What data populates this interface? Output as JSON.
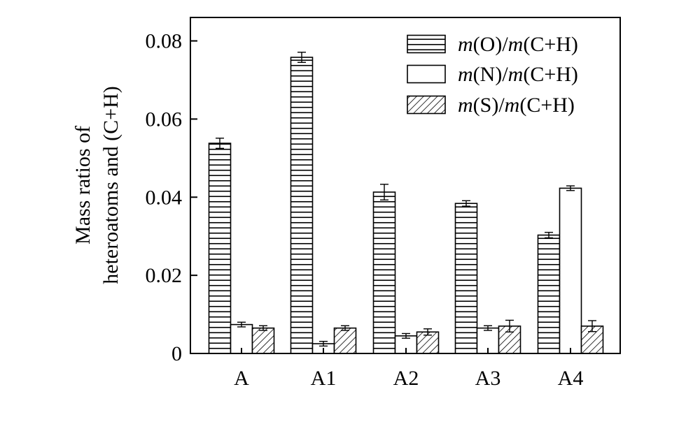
{
  "chart_data": {
    "type": "bar",
    "categories": [
      "A",
      "A1",
      "A2",
      "A3",
      "A4"
    ],
    "series": [
      {
        "name": "m(O)/m(C+H)",
        "name_parts": {
          "italic": "m",
          "mid": "(O)/",
          "italic2": "m",
          "tail": "(C+H)"
        },
        "fill": "hatch-horizontal",
        "values": [
          0.0538,
          0.0758,
          0.0413,
          0.0384,
          0.0303
        ],
        "errors": [
          0.0013,
          0.0013,
          0.002,
          0.0007,
          0.0007
        ]
      },
      {
        "name": "m(N)/m(C+H)",
        "name_parts": {
          "italic": "m",
          "mid": "(N)/",
          "italic2": "m",
          "tail": "(C+H)"
        },
        "fill": "white",
        "values": [
          0.0074,
          0.0025,
          0.0045,
          0.0065,
          0.0423
        ],
        "errors": [
          0.0006,
          0.0006,
          0.0006,
          0.0006,
          0.0006
        ]
      },
      {
        "name": "m(S)/m(C+H)",
        "name_parts": {
          "italic": "m",
          "mid": "(S)/",
          "italic2": "m",
          "tail": "(C+H)"
        },
        "fill": "hatch-diagonal",
        "values": [
          0.0065,
          0.0065,
          0.0055,
          0.007,
          0.007
        ],
        "errors": [
          0.0006,
          0.0006,
          0.0008,
          0.0015,
          0.0014
        ]
      }
    ],
    "ylabel_line1": "Mass ratios of",
    "ylabel_line2": "heteroatoms and (C+H)",
    "xlabel": "",
    "ylim": [
      0,
      0.086
    ],
    "yticks": [
      0,
      0.02,
      0.04,
      0.06,
      0.08
    ],
    "ytick_labels": [
      "0",
      "0.02",
      "0.04",
      "0.06",
      "0.08"
    ],
    "legend_position": "top-right",
    "grid": false
  },
  "colors": {
    "stroke": "#000000",
    "background": "#ffffff"
  }
}
